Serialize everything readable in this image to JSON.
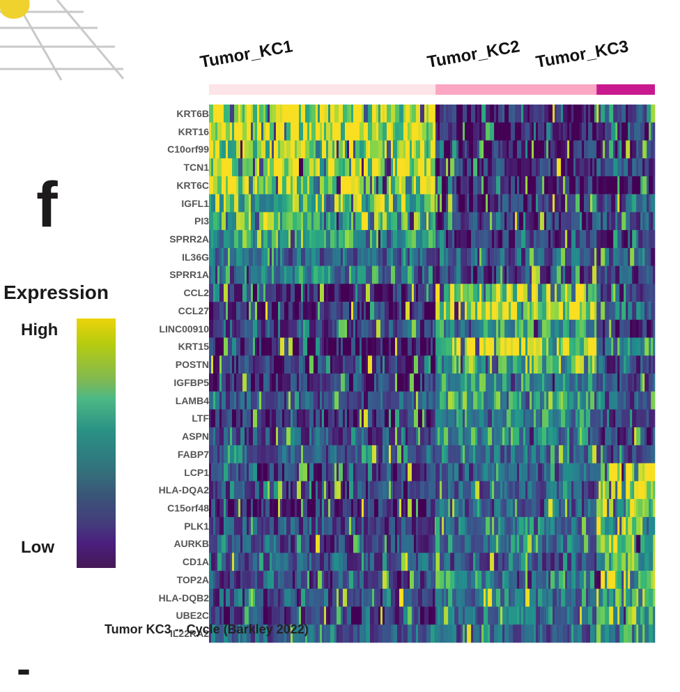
{
  "figure": {
    "panel_letter": "f",
    "bottom_letter": "-",
    "caption": "Tumor KC3 -- Cycle (Barkley 2022)"
  },
  "legend": {
    "title": "Expression",
    "high_label": "High",
    "low_label": "Low",
    "colormap": "viridis"
  },
  "chart_data": {
    "type": "heatmap",
    "title": "Tumor KC3 -- Cycle (Barkley 2022)",
    "xlabel": "",
    "ylabel": "",
    "colorbar": {
      "title": "Expression",
      "min_label": "Low",
      "max_label": "High",
      "colormap": "viridis"
    },
    "clusters": [
      {
        "name": "Tumor_KC1",
        "color": "#fde4e8",
        "cell_fraction": 0.508
      },
      {
        "name": "Tumor_KC2",
        "color": "#fba6c2",
        "cell_fraction": 0.361
      },
      {
        "name": "Tumor_KC3",
        "color": "#c81a8e",
        "cell_fraction": 0.131
      }
    ],
    "genes": [
      "KRT6B",
      "KRT16",
      "C10orf99",
      "TCN1",
      "KRT6C",
      "IGFL1",
      "PI3",
      "SPRR2A",
      "IL36G",
      "SPRR1A",
      "CCL2",
      "CCL27",
      "LINC00910",
      "KRT15",
      "POSTN",
      "IGFBP5",
      "LAMB4",
      "LTF",
      "ASPN",
      "FABP7",
      "LCP1",
      "HLA-DQA2",
      "C15orf48",
      "PLK1",
      "AURKB",
      "CD1A",
      "TOP2A",
      "HLA-DQB2",
      "UBE2C",
      "IL22RA2"
    ],
    "mean_expression_by_cluster": {
      "note": "approximate relative expression (0=low, 1=high) estimated from color",
      "Tumor_KC1": [
        0.92,
        0.95,
        0.9,
        0.9,
        0.93,
        0.78,
        0.75,
        0.7,
        0.4,
        0.55,
        0.12,
        0.15,
        0.3,
        0.12,
        0.18,
        0.22,
        0.28,
        0.15,
        0.3,
        0.35,
        0.25,
        0.22,
        0.15,
        0.3,
        0.25,
        0.35,
        0.25,
        0.3,
        0.22,
        0.4
      ],
      "Tumor_KC2": [
        0.12,
        0.1,
        0.12,
        0.2,
        0.12,
        0.18,
        0.2,
        0.2,
        0.35,
        0.25,
        0.9,
        0.92,
        0.6,
        0.9,
        0.75,
        0.6,
        0.65,
        0.55,
        0.6,
        0.45,
        0.35,
        0.35,
        0.35,
        0.45,
        0.5,
        0.35,
        0.6,
        0.45,
        0.45,
        0.4
      ],
      "Tumor_KC3": [
        0.2,
        0.15,
        0.15,
        0.25,
        0.1,
        0.3,
        0.3,
        0.2,
        0.3,
        0.3,
        0.3,
        0.4,
        0.1,
        0.6,
        0.3,
        0.25,
        0.35,
        0.3,
        0.2,
        0.3,
        0.98,
        0.97,
        0.9,
        0.75,
        0.8,
        0.7,
        0.8,
        0.75,
        0.7,
        0.6
      ]
    }
  }
}
